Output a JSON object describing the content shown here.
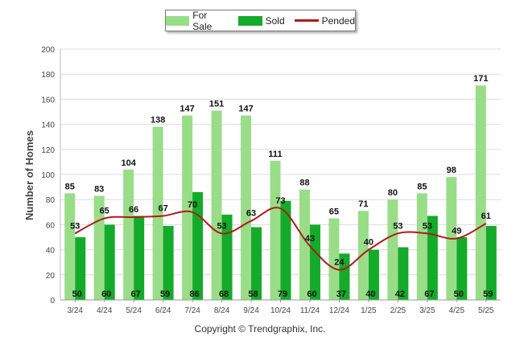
{
  "legend": {
    "for_sale": "For Sale",
    "sold": "Sold",
    "pended": "Pended"
  },
  "copyright": "Copyright © Trendgraphix, Inc.",
  "colors": {
    "for_sale": "#99dd88",
    "sold": "#14aa2a",
    "pended": "#b21a1a",
    "grid": "#dcdcdc"
  },
  "chart_data": {
    "type": "bar",
    "title": "",
    "xlabel": "",
    "ylabel": "Number of Homes",
    "ylim": [
      0,
      200
    ],
    "yticks": [
      0,
      20,
      40,
      60,
      80,
      100,
      120,
      140,
      160,
      180,
      200
    ],
    "grid": true,
    "legend_position": "top-center",
    "categories": [
      "3/24",
      "4/24",
      "5/24",
      "6/24",
      "7/24",
      "8/24",
      "9/24",
      "10/24",
      "11/24",
      "12/24",
      "1/25",
      "2/25",
      "3/25",
      "4/25",
      "5/25"
    ],
    "series": [
      {
        "name": "For Sale",
        "kind": "bar",
        "values": [
          85,
          83,
          104,
          138,
          147,
          151,
          147,
          111,
          88,
          65,
          71,
          80,
          85,
          98,
          171
        ]
      },
      {
        "name": "Sold",
        "kind": "bar",
        "values": [
          50,
          60,
          67,
          59,
          86,
          68,
          58,
          79,
          60,
          37,
          40,
          42,
          67,
          50,
          59
        ]
      },
      {
        "name": "Pended",
        "kind": "line",
        "values": [
          53,
          65,
          66,
          67,
          70,
          53,
          63,
          73,
          43,
          24,
          40,
          53,
          53,
          49,
          61
        ]
      }
    ]
  }
}
